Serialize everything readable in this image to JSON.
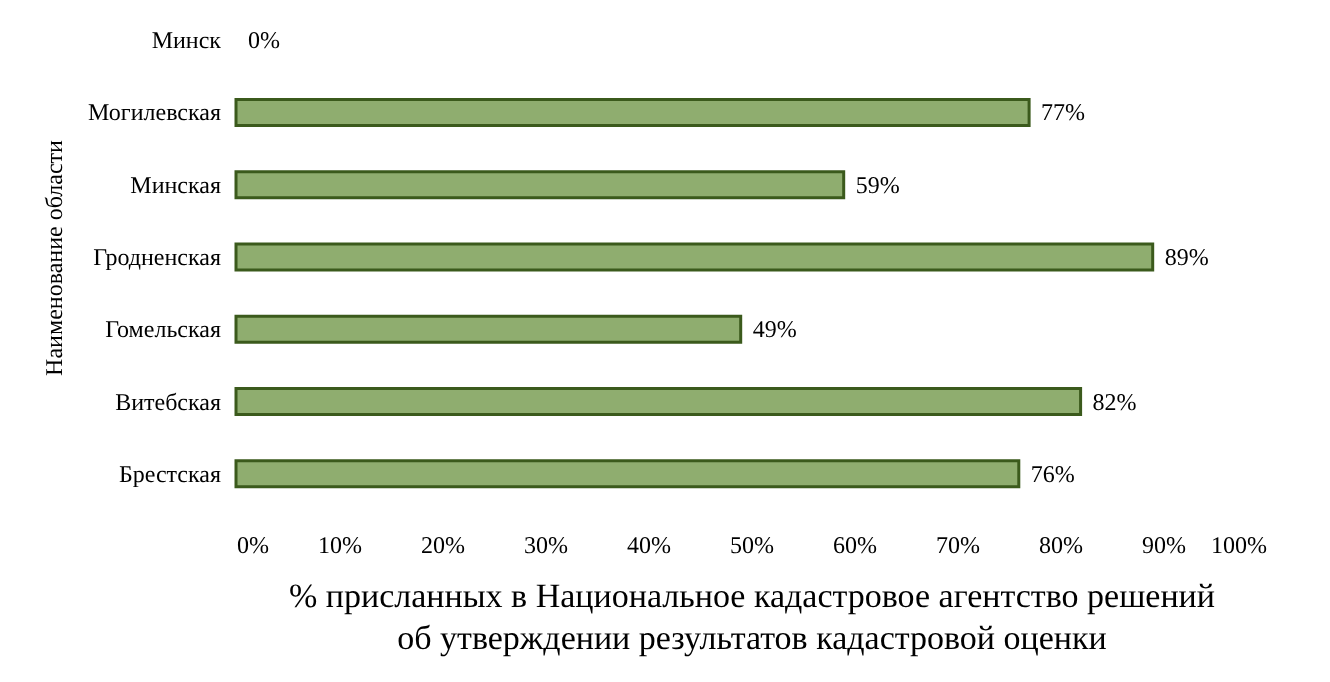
{
  "chart_data": {
    "type": "bar",
    "orientation": "horizontal",
    "xlabel": "% присланных в Национальное кадастровое агентство решений об утверждении результатов кадастровой оценки",
    "ylabel": "Наименование области",
    "categories": [
      "Минск",
      "Могилевская",
      "Минская",
      "Гродненская",
      "Гомельская",
      "Витебская",
      "Брестская"
    ],
    "values": [
      0,
      77,
      59,
      89,
      49,
      82,
      76
    ],
    "value_labels": [
      "0%",
      "77%",
      "59%",
      "89%",
      "49%",
      "82%",
      "76%"
    ],
    "color": "#8fad6f",
    "xlim": [
      0,
      100
    ],
    "xticks": [
      {
        "value": 0,
        "label": "0%"
      },
      {
        "value": 10,
        "label": "10%"
      },
      {
        "value": 20,
        "label": "20%"
      },
      {
        "value": 30,
        "label": "30%"
      },
      {
        "value": 40,
        "label": "40%"
      },
      {
        "value": 50,
        "label": "50%"
      },
      {
        "value": 60,
        "label": "60%"
      },
      {
        "value": 70,
        "label": "70%"
      },
      {
        "value": 80,
        "label": "80%"
      },
      {
        "value": 90,
        "label": "90%"
      },
      {
        "value": 100,
        "label": "100%"
      }
    ],
    "grid": false
  }
}
